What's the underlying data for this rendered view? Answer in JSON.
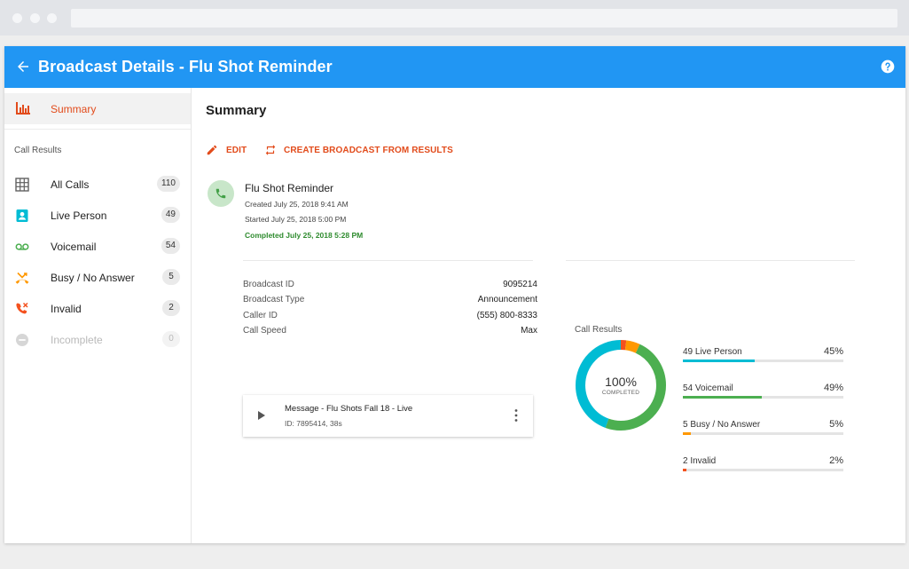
{
  "window": {
    "title": "Broadcast Details - Flu Shot Reminder"
  },
  "sidebar": {
    "summary_label": "Summary",
    "section_label": "Call Results",
    "items": [
      {
        "label": "All Calls",
        "count": "110",
        "icon": "grid-icon",
        "color": "#616161"
      },
      {
        "label": "Live Person",
        "count": "49",
        "icon": "contact-icon",
        "color": "#00bcd4"
      },
      {
        "label": "Voicemail",
        "count": "54",
        "icon": "voicemail-icon",
        "color": "#4caf50"
      },
      {
        "label": "Busy / No Answer",
        "count": "5",
        "icon": "missed-call-icon",
        "color": "#ff9800"
      },
      {
        "label": "Invalid",
        "count": "2",
        "icon": "call-blocked-icon",
        "color": "#f4511e"
      },
      {
        "label": "Incomplete",
        "count": "0",
        "icon": "minus-circle-icon",
        "color": "#bdbdbd"
      }
    ]
  },
  "main": {
    "title": "Summary",
    "actions": {
      "edit": "EDIT",
      "create": "CREATE BROADCAST FROM RESULTS"
    },
    "broadcast": {
      "name": "Flu Shot Reminder",
      "created": "Created July 25, 2018 9:41 AM",
      "started": "Started July 25, 2018 5:00 PM",
      "completed": "Completed July 25, 2018 5:28 PM"
    },
    "details": [
      {
        "label": "Broadcast ID",
        "value": "9095214"
      },
      {
        "label": "Broadcast Type",
        "value": "Announcement"
      },
      {
        "label": "Caller ID",
        "value": "(555) 800-8333"
      },
      {
        "label": "Call Speed",
        "value": "Max"
      }
    ],
    "message": {
      "title": "Message - Flu Shots Fall 18 - Live",
      "subtitle": "ID: 7895414, 38s"
    },
    "call_results": {
      "label": "Call Results",
      "center_value": "100%",
      "center_label": "COMPLETED",
      "rows": [
        {
          "label": "49 Live Person",
          "percent": "45%",
          "fraction": 0.45,
          "color": "#00bcd4"
        },
        {
          "label": "54 Voicemail",
          "percent": "49%",
          "fraction": 0.49,
          "color": "#4caf50"
        },
        {
          "label": "5 Busy / No Answer",
          "percent": "5%",
          "fraction": 0.05,
          "color": "#ff9800"
        },
        {
          "label": "2 Invalid",
          "percent": "2%",
          "fraction": 0.02,
          "color": "#f4511e"
        }
      ]
    }
  },
  "colors": {
    "primary": "#2196f3",
    "accent": "#e24b1b",
    "success": "#2e8b2e"
  }
}
